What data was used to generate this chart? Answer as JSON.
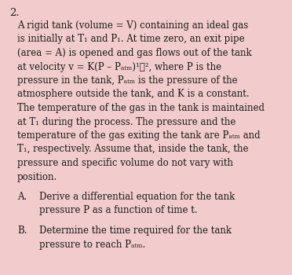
{
  "background_color": "#f2cccc",
  "text_color": "#1a1a1a",
  "number": "2.",
  "font_family": "DejaVu Serif",
  "font_size": 8.5,
  "line1": "A rigid tank (volume = V) containing an ideal gas",
  "line2": "is initially at T₁ and P₁. At time zero, an exit pipe",
  "line3": "(area = A) is opened and gas flows out of the tank",
  "line4": "at velocity v = K(P – Pₐₜₘ)¹ᐟ², where P is the",
  "line5": "pressure in the tank, Pₐₜₘ is the pressure of the",
  "line6": "atmosphere outside the tank, and K is a constant.",
  "line7": "The temperature of the gas in the tank is maintained",
  "line8": "at T₁ during the process. The pressure and the",
  "line9": "temperature of the gas exiting the tank are Pₐₜₘ and",
  "line10": "T₁, respectively. Assume that, inside the tank, the",
  "line11": "pressure and specific volume do not vary with",
  "line12": "position.",
  "itemA_label": "A.",
  "itemA_line1": "Derive a differential equation for the tank",
  "itemA_line2": "pressure P as a function of time t.",
  "itemB_label": "B.",
  "itemB_line1": "Determine the time required for the tank",
  "itemB_line2": "pressure to reach Pₐₜₘ."
}
